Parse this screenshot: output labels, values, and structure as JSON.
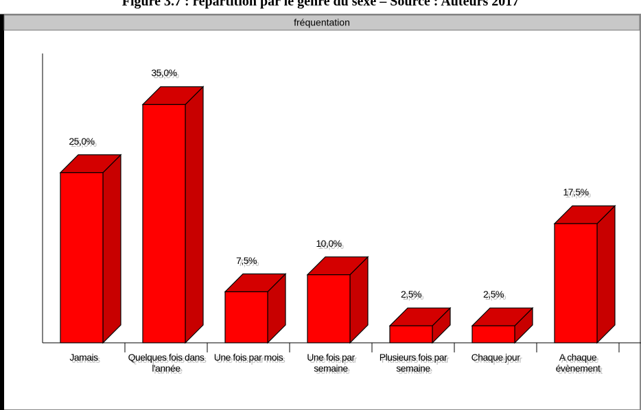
{
  "caption": "Figure 3.7 : répartition par le genre du sexe – Source : Auteurs 2017",
  "chart_data": {
    "type": "bar3d",
    "title": "fréquentation",
    "categories": [
      "Jamais",
      "Quelques fois dans l'année",
      "Une fois par mois",
      "Une fois par semaine",
      "Plusieurs fois par semaine",
      "Chaque jour",
      "A chaque évènement"
    ],
    "values": [
      25,
      35,
      7.5,
      10,
      2.5,
      2.5,
      17.5
    ],
    "value_labels": [
      "25,0%",
      "35,0%",
      "7,5%",
      "10,0%",
      "2,5%",
      "2,5%",
      "17,5%"
    ],
    "color": "#ff0000",
    "ylim": [
      0,
      42.5
    ]
  }
}
